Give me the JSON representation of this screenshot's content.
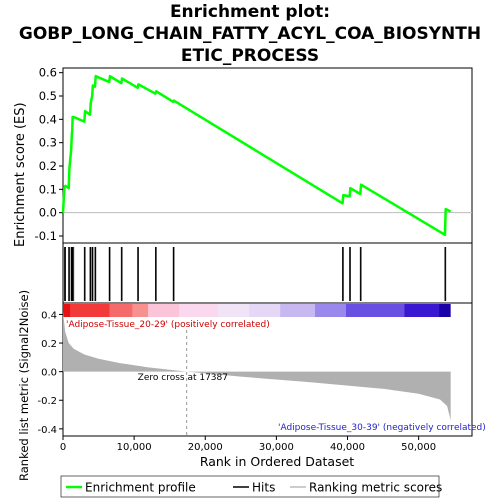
{
  "title_line1": "Enrichment plot:",
  "title_line2": "GOBP_LONG_CHAIN_FATTY_ACYL_COA_BIOSYNTH",
  "title_line3": "ETIC_PROCESS",
  "colors": {
    "enrichment_line": "#00ff00",
    "hits": "#000000",
    "metric_fill": "#b0b0b0",
    "positive_label": "#cc0000",
    "negative_label": "#2222cc"
  },
  "chart_data": {
    "type": "line",
    "xlabel": "Rank in Ordered Dataset",
    "x_ticks": [
      0,
      10000,
      20000,
      30000,
      40000,
      50000
    ],
    "x_tick_labels": [
      "0",
      "10,000",
      "20,000",
      "30,000",
      "40,000",
      "50,000"
    ],
    "xlim": [
      0,
      57500
    ],
    "top_panel": {
      "ylabel": "Enrichment score (ES)",
      "ylim": [
        -0.13,
        0.62
      ],
      "y_ticks": [
        -0.1,
        0.0,
        0.1,
        0.2,
        0.3,
        0.4,
        0.5,
        0.6
      ],
      "y_tick_labels": [
        "-0.1",
        "0.0",
        "0.1",
        "0.2",
        "0.3",
        "0.4",
        "0.5",
        "0.6"
      ],
      "series": [
        {
          "name": "Enrichment profile",
          "x": [
            0,
            200,
            350,
            800,
            900,
            1150,
            1250,
            1300,
            1350,
            1500,
            3000,
            3100,
            3800,
            3900,
            4100,
            4200,
            4500,
            4600,
            6500,
            6600,
            8200,
            8300,
            10500,
            10600,
            13000,
            13100,
            15500,
            15600,
            39300,
            39400,
            40300,
            40400,
            41800,
            41900,
            53700,
            53800,
            54500
          ],
          "y": [
            0.0,
            0.11,
            0.115,
            0.105,
            0.19,
            0.27,
            0.34,
            0.35,
            0.41,
            0.41,
            0.39,
            0.435,
            0.42,
            0.47,
            0.5,
            0.545,
            0.54,
            0.585,
            0.56,
            0.585,
            0.555,
            0.575,
            0.535,
            0.55,
            0.51,
            0.52,
            0.475,
            0.48,
            0.04,
            0.075,
            0.07,
            0.105,
            0.08,
            0.12,
            -0.095,
            0.015,
            0.005
          ]
        }
      ]
    },
    "hits": [
      200,
      350,
      800,
      900,
      1150,
      1250,
      1300,
      1350,
      1500,
      3000,
      3100,
      3800,
      3900,
      4100,
      4200,
      4500,
      4600,
      6500,
      6600,
      8200,
      8300,
      10500,
      10600,
      13000,
      13100,
      15500,
      15600,
      39300,
      39400,
      40300,
      40400,
      41800,
      41900,
      53700,
      53800
    ],
    "bottom_panel": {
      "ylabel": "Ranked list metric (Signal2Noise)",
      "ylim": [
        -0.45,
        0.48
      ],
      "y_ticks": [
        -0.4,
        -0.2,
        0.0,
        0.2,
        0.4
      ],
      "y_tick_labels": [
        "-0.4",
        "-0.2",
        "0.0",
        "0.2",
        "0.4"
      ],
      "metric_x": [
        0,
        300,
        800,
        1500,
        3000,
        5000,
        8000,
        12000,
        17387,
        25000,
        35000,
        45000,
        50000,
        53000,
        54000,
        54300,
        54500
      ],
      "metric_y": [
        0.42,
        0.28,
        0.2,
        0.16,
        0.12,
        0.09,
        0.06,
        0.03,
        0.0,
        -0.035,
        -0.075,
        -0.12,
        -0.155,
        -0.195,
        -0.24,
        -0.3,
        -0.34
      ],
      "zero_cross": 17387,
      "zero_cross_label": "Zero cross at 17387",
      "positive_label": "'Adipose-Tissue_20-29' (positively correlated)",
      "negative_label": "'Adipose-Tissue_30-39' (negatively correlated)"
    },
    "legend": [
      "Enrichment profile",
      "Hits",
      "Ranking metric scores"
    ],
    "legend_position": "bottom"
  }
}
